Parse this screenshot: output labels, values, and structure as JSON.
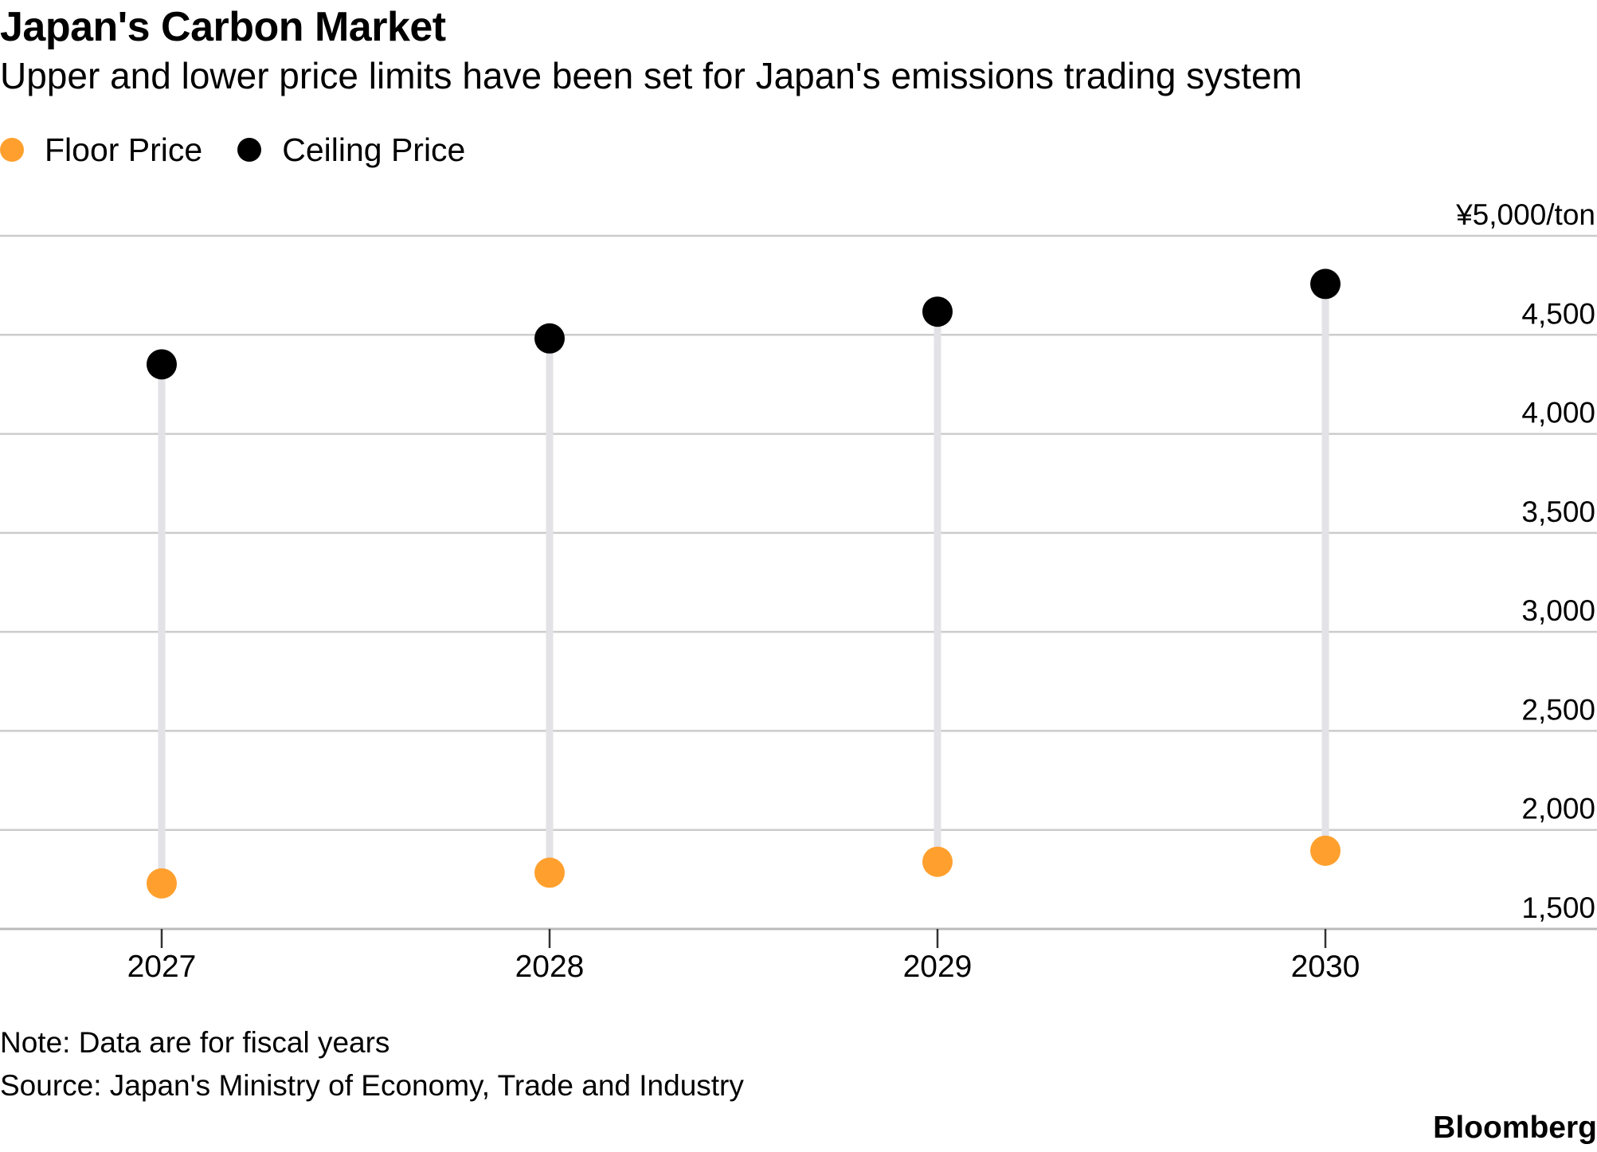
{
  "colors": {
    "floor": "#FFA02E",
    "ceiling": "#000000",
    "stem": "#E2E2E7",
    "grid": "#CCCCCC",
    "axis": "#BBBBBB",
    "text": "#000000"
  },
  "legend": {
    "floor_label": "Floor Price",
    "ceiling_label": "Ceiling Price"
  },
  "footer": {
    "note": "Note: Data are for fiscal years",
    "source": "Source: Japan's Ministry of Economy, Trade and Industry",
    "brand": "Bloomberg"
  },
  "chart_data": {
    "type": "dumbbell",
    "title": "Japan's Carbon Market",
    "subtitle": "Upper and lower price limits have been set for Japan's emissions trading system",
    "xlabel": "",
    "ylabel": "",
    "categories": [
      "2027",
      "2028",
      "2029",
      "2030"
    ],
    "series": [
      {
        "name": "Floor Price",
        "values": [
          1730,
          1784,
          1839,
          1895
        ]
      },
      {
        "name": "Ceiling Price",
        "values": [
          4351,
          4482,
          4617,
          4757
        ]
      }
    ],
    "ylim": [
      1500,
      5000
    ],
    "yticks": [
      1500,
      2000,
      2500,
      3000,
      3500,
      4000,
      4500,
      5000
    ],
    "ytick_labels": [
      "1,500",
      "2,000",
      "2,500",
      "3,000",
      "3,500",
      "4,000",
      "4,500",
      "¥5,000/ton"
    ],
    "grid": true,
    "legend_position": "top-left"
  }
}
